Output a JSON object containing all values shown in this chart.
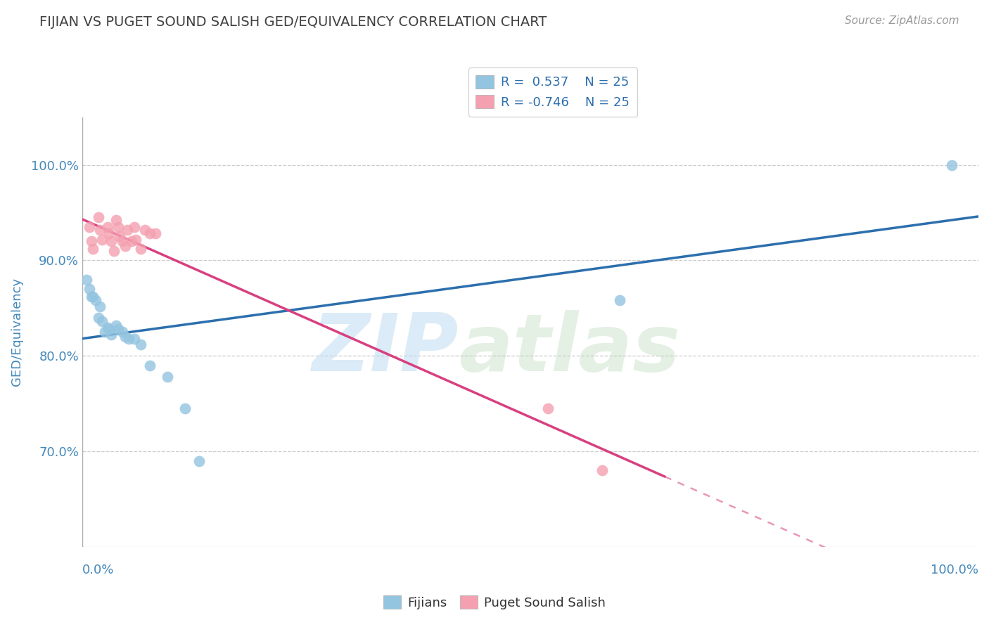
{
  "title": "FIJIAN VS PUGET SOUND SALISH GED/EQUIVALENCY CORRELATION CHART",
  "source": "Source: ZipAtlas.com",
  "ylabel": "GED/Equivalency",
  "xlim": [
    0.0,
    1.0
  ],
  "ylim": [
    0.6,
    1.05
  ],
  "ytick_values": [
    0.7,
    0.8,
    0.9,
    1.0
  ],
  "legend_r1": "R =  0.537",
  "legend_n1": "N = 25",
  "legend_r2": "R = -0.746",
  "legend_n2": "N = 25",
  "legend_label1": "Fijians",
  "legend_label2": "Puget Sound Salish",
  "fijian_color": "#93c4e0",
  "salish_color": "#f4a0b0",
  "fijian_line_color": "#2c6fad",
  "salish_line_color": "#d84080",
  "background_color": "#ffffff",
  "grid_color": "#cccccc",
  "title_color": "#404040",
  "axis_color": "#4488bb",
  "fijian_x": [
    0.005,
    0.008,
    0.01,
    0.012,
    0.015,
    0.018,
    0.02,
    0.022,
    0.025,
    0.028,
    0.03,
    0.032,
    0.038,
    0.04,
    0.045,
    0.048,
    0.052,
    0.058,
    0.065,
    0.075,
    0.095,
    0.115,
    0.13,
    0.6,
    0.97
  ],
  "fijian_y": [
    0.88,
    0.87,
    0.862,
    0.862,
    0.858,
    0.84,
    0.852,
    0.836,
    0.825,
    0.83,
    0.828,
    0.822,
    0.832,
    0.828,
    0.825,
    0.82,
    0.818,
    0.818,
    0.812,
    0.79,
    0.778,
    0.745,
    0.69,
    0.858,
    1.0
  ],
  "salish_x": [
    0.008,
    0.01,
    0.012,
    0.018,
    0.02,
    0.022,
    0.028,
    0.03,
    0.032,
    0.035,
    0.038,
    0.04,
    0.042,
    0.045,
    0.048,
    0.05,
    0.055,
    0.058,
    0.06,
    0.065,
    0.07,
    0.075,
    0.082,
    0.52,
    0.58
  ],
  "salish_y": [
    0.935,
    0.92,
    0.912,
    0.945,
    0.932,
    0.922,
    0.935,
    0.928,
    0.92,
    0.91,
    0.942,
    0.935,
    0.925,
    0.92,
    0.915,
    0.932,
    0.92,
    0.935,
    0.922,
    0.912,
    0.932,
    0.928,
    0.928,
    0.745,
    0.68
  ]
}
